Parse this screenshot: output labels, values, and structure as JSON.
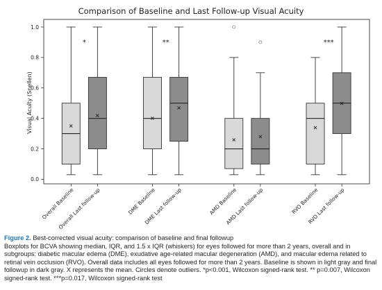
{
  "chart_data": {
    "type": "boxplot",
    "title": "Comparison of Baseline and Last Follow-up Visual Acuity",
    "xlabel": "",
    "ylabel": "Visual Acuity (Snellen)",
    "ylim": [
      -0.03,
      1.05
    ],
    "yticks": [
      "0.0",
      "0.2",
      "0.4",
      "0.6",
      "0.8",
      "1.0"
    ],
    "ytick_values": [
      0.0,
      0.2,
      0.4,
      0.6,
      0.8,
      1.0
    ],
    "grid": false,
    "colors": {
      "baseline": "#d9d9d9",
      "followup": "#8c8c8c",
      "edge": "#333333"
    },
    "boxes": [
      {
        "label": "Overall Baseline",
        "group": "baseline",
        "whisker_low": 0.03,
        "q1": 0.1,
        "median": 0.3,
        "q3": 0.5,
        "whisker_high": 1.0,
        "mean": 0.35,
        "outliers": []
      },
      {
        "label": "Overall Last follow-up",
        "group": "followup",
        "whisker_low": 0.03,
        "q1": 0.2,
        "median": 0.4,
        "q3": 0.67,
        "whisker_high": 1.0,
        "mean": 0.42,
        "outliers": []
      },
      {
        "label": "DME Baseline",
        "group": "baseline",
        "whisker_low": 0.03,
        "q1": 0.2,
        "median": 0.4,
        "q3": 0.67,
        "whisker_high": 1.0,
        "mean": 0.4,
        "outliers": []
      },
      {
        "label": "DME Last follow-up",
        "group": "followup",
        "whisker_low": 0.03,
        "q1": 0.25,
        "median": 0.5,
        "q3": 0.67,
        "whisker_high": 1.0,
        "mean": 0.47,
        "outliers": []
      },
      {
        "label": "AMD Baseline",
        "group": "baseline",
        "whisker_low": 0.03,
        "q1": 0.07,
        "median": 0.2,
        "q3": 0.4,
        "whisker_high": 0.8,
        "mean": 0.26,
        "outliers": [
          1.0
        ]
      },
      {
        "label": "AMD Last follow-up",
        "group": "followup",
        "whisker_low": 0.03,
        "q1": 0.1,
        "median": 0.2,
        "q3": 0.4,
        "whisker_high": 0.7,
        "mean": 0.28,
        "outliers": [
          0.9
        ]
      },
      {
        "label": "RVO Baseline",
        "group": "baseline",
        "whisker_low": 0.03,
        "q1": 0.1,
        "median": 0.4,
        "q3": 0.5,
        "whisker_high": 0.8,
        "mean": 0.34,
        "outliers": []
      },
      {
        "label": "RVO Last follow-up",
        "group": "followup",
        "whisker_low": 0.03,
        "q1": 0.3,
        "median": 0.5,
        "q3": 0.7,
        "whisker_high": 1.0,
        "mean": 0.5,
        "outliers": []
      }
    ],
    "annotations": [
      {
        "text": "*",
        "between": [
          0,
          1
        ],
        "y": 0.9
      },
      {
        "text": "**",
        "between": [
          2,
          3
        ],
        "y": 0.9
      },
      {
        "text": "***",
        "between": [
          6,
          7
        ],
        "y": 0.9
      }
    ]
  },
  "caption": {
    "label": "Figure 2.",
    "heading": "Best-corrected visual acuity: comparison of baseline and final followup",
    "body": "Boxplots for BCVA showing median, IQR, and 1.5 x IQR (whiskers) for eyes followed for more than 2 years, overall and in subgroups: diabetic macular edema (DME), exudative age-related macular degeneration (AMD), and macular edema related to retinal vein occlusion (RVO). Overall data includes all eyes followed for more than 2 years. Baseline is shown in light gray and final followup in dark gray. X represents the mean. Circles denote outliers. *p<0.001, Wilcoxon signed-rank test. ** p=0.007, Wilcoxon signed-rank test. ***p=0.017, Wilcoxon signed-rank test"
  }
}
